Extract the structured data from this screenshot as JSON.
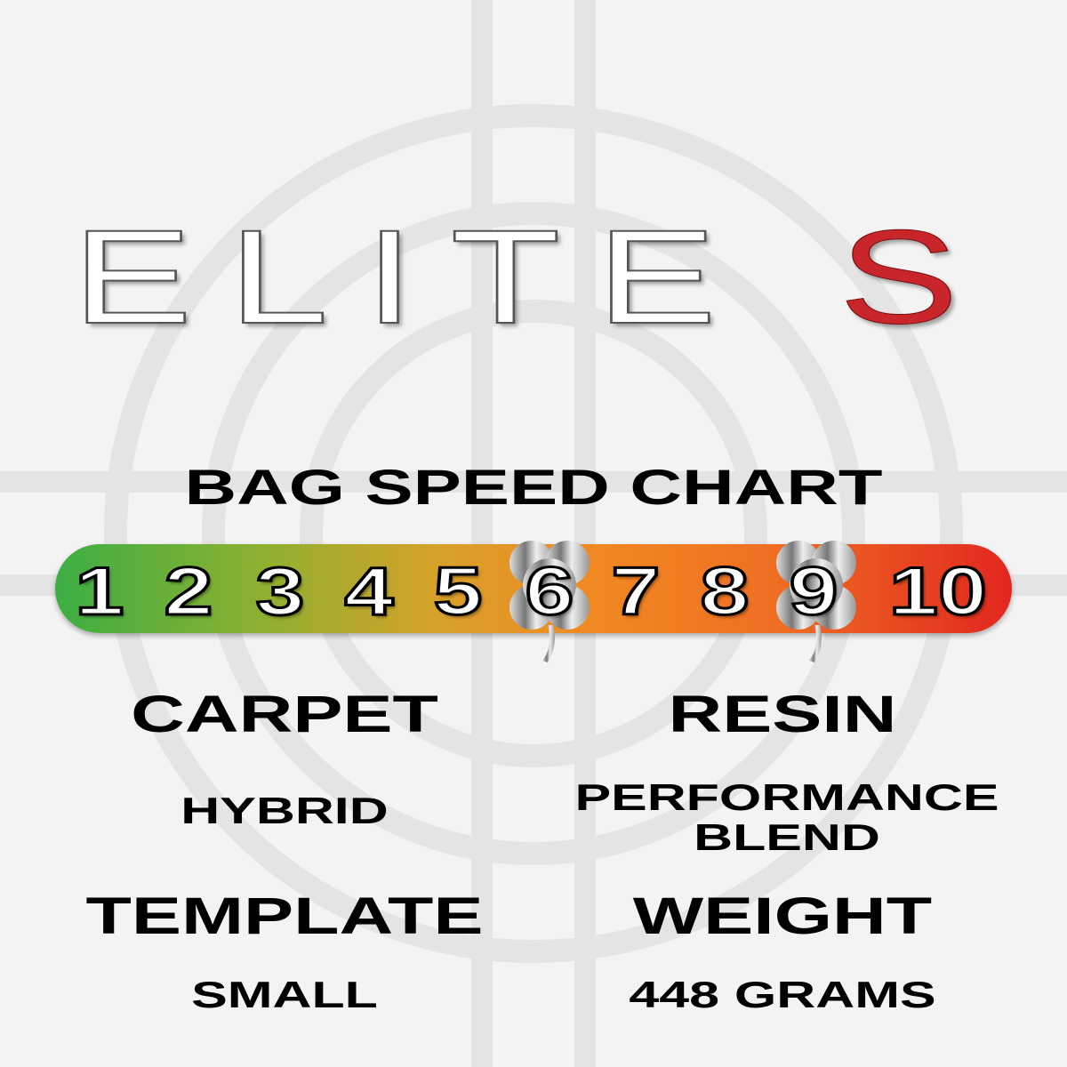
{
  "title": {
    "main": "ELITE ",
    "accent": "S",
    "accent_color": "#c8262a"
  },
  "speed_chart": {
    "heading": "BAG SPEED CHART",
    "numbers": [
      "1",
      "2",
      "3",
      "4",
      "5",
      "6",
      "7",
      "8",
      "9",
      "10"
    ],
    "marked_range": [
      6,
      9
    ],
    "marker_icon": "clover-icon",
    "gradient_colors": [
      "#3cae44",
      "#f08a22",
      "#e2261f"
    ]
  },
  "specs": {
    "carpet": {
      "label": "CARPET",
      "value": "HYBRID"
    },
    "resin": {
      "label": "RESIN",
      "value_line1": "PERFORMANCE",
      "value_line2": "BLEND"
    },
    "template": {
      "label": "TEMPLATE",
      "value": "SMALL"
    },
    "weight": {
      "label": "WEIGHT",
      "value": "448 GRAMS"
    }
  }
}
